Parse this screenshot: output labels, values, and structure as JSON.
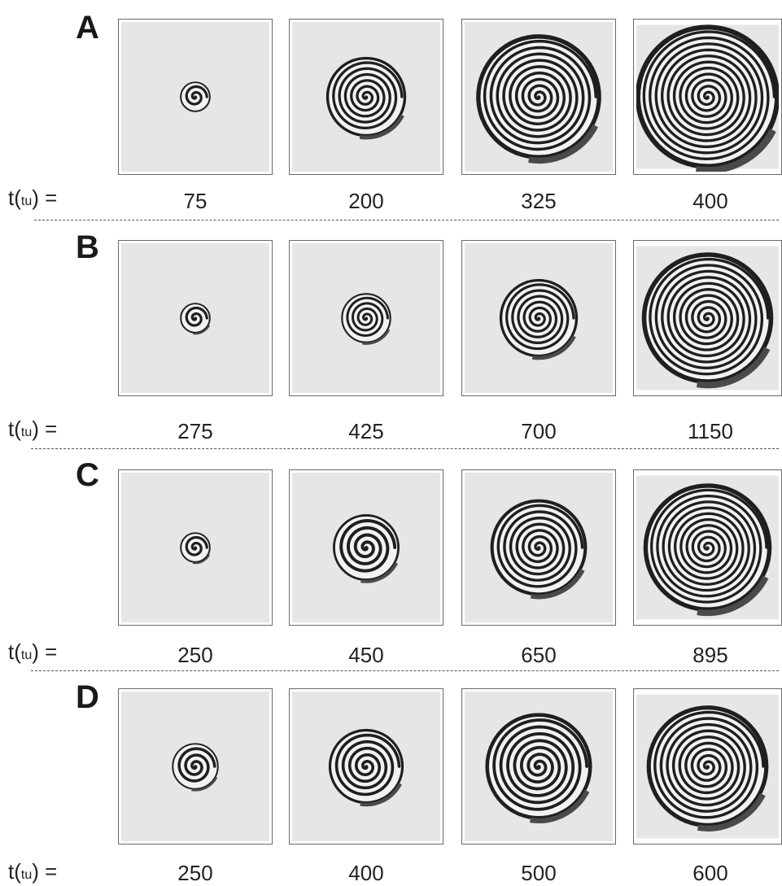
{
  "time_label": {
    "prefix": "t(",
    "unit": "tu",
    "suffix": ") ="
  },
  "rows": [
    {
      "letter": "A",
      "times": [
        "75",
        "200",
        "325",
        "400"
      ]
    },
    {
      "letter": "B",
      "times": [
        "275",
        "425",
        "700",
        "1150"
      ]
    },
    {
      "letter": "C",
      "times": [
        "250",
        "450",
        "650",
        "895"
      ]
    },
    {
      "letter": "D",
      "times": [
        "250",
        "400",
        "500",
        "600"
      ]
    }
  ],
  "colors": {
    "background": "#e6e6e6",
    "stripe": "#1f1f1f",
    "frame": "#6a6a6a"
  }
}
